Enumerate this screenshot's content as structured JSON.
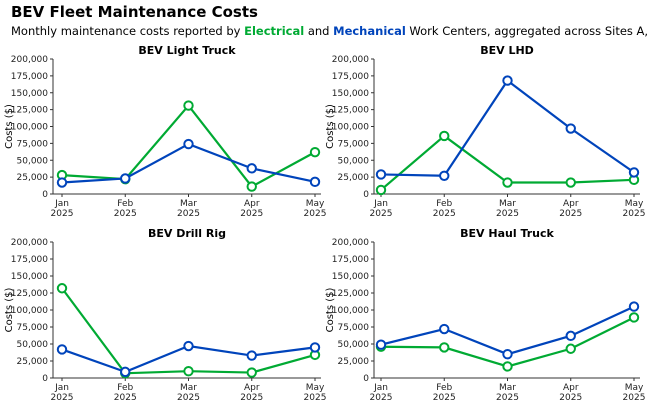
{
  "title": "BEV Fleet Maintenance Costs",
  "subtitle": {
    "pre": "Monthly maintenance costs reported by ",
    "electrical": "Electrical",
    "mid": " and ",
    "mechanical": "Mechanical",
    "post": " Work Centers, aggregated across Sites A, B & C"
  },
  "colors": {
    "electrical": "#00aa33",
    "mechanical": "#0044bb"
  },
  "chart_data": [
    {
      "type": "line",
      "title": "BEV Light Truck",
      "ylabel": "Costs ($)",
      "categories": [
        "Jan\n2025",
        "Feb\n2025",
        "Mar\n2025",
        "Apr\n2025",
        "May\n2025"
      ],
      "ylim": [
        0,
        200000
      ],
      "yticks": [
        0,
        25000,
        50000,
        75000,
        100000,
        125000,
        150000,
        175000,
        200000
      ],
      "series": [
        {
          "name": "Electrical",
          "values": [
            28000,
            22000,
            131000,
            11000,
            62000
          ]
        },
        {
          "name": "Mechanical",
          "values": [
            17000,
            23000,
            74000,
            38000,
            18000
          ]
        }
      ]
    },
    {
      "type": "line",
      "title": "BEV LHD",
      "ylabel": "Costs ($)",
      "categories": [
        "Jan\n2025",
        "Feb\n2025",
        "Mar\n2025",
        "Apr\n2025",
        "May\n2025"
      ],
      "ylim": [
        0,
        200000
      ],
      "yticks": [
        0,
        25000,
        50000,
        75000,
        100000,
        125000,
        150000,
        175000,
        200000
      ],
      "series": [
        {
          "name": "Electrical",
          "values": [
            6000,
            86000,
            17000,
            17000,
            21000
          ]
        },
        {
          "name": "Mechanical",
          "values": [
            29000,
            27000,
            168000,
            97000,
            32000
          ]
        }
      ]
    },
    {
      "type": "line",
      "title": "BEV Drill Rig",
      "ylabel": "Costs ($)",
      "categories": [
        "Jan\n2025",
        "Feb\n2025",
        "Mar\n2025",
        "Apr\n2025",
        "May\n2025"
      ],
      "ylim": [
        0,
        200000
      ],
      "yticks": [
        0,
        25000,
        50000,
        75000,
        100000,
        125000,
        150000,
        175000,
        200000
      ],
      "series": [
        {
          "name": "Electrical",
          "values": [
            132000,
            7000,
            10000,
            8000,
            34000
          ]
        },
        {
          "name": "Mechanical",
          "values": [
            42000,
            9000,
            47000,
            33000,
            45000
          ]
        }
      ]
    },
    {
      "type": "line",
      "title": "BEV Haul Truck",
      "ylabel": "Costs ($)",
      "categories": [
        "Jan\n2025",
        "Feb\n2025",
        "Mar\n2025",
        "Apr\n2025",
        "May\n2025"
      ],
      "ylim": [
        0,
        200000
      ],
      "yticks": [
        0,
        25000,
        50000,
        75000,
        100000,
        125000,
        150000,
        175000,
        200000
      ],
      "series": [
        {
          "name": "Electrical",
          "values": [
            46000,
            45000,
            17000,
            43000,
            89000
          ]
        },
        {
          "name": "Mechanical",
          "values": [
            49000,
            72000,
            35000,
            62000,
            105000
          ]
        }
      ]
    }
  ]
}
